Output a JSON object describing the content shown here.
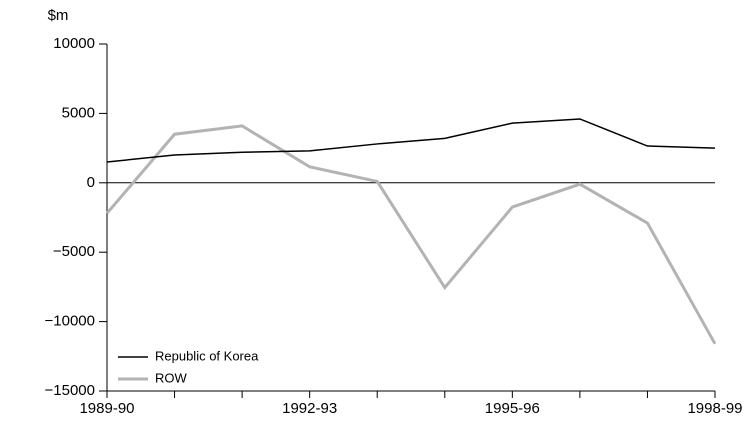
{
  "chart_data": {
    "type": "line",
    "y_label": "$m",
    "categories": [
      "1989-90",
      null,
      null,
      "1992-93",
      null,
      null,
      "1995-96",
      null,
      null,
      "1998-99"
    ],
    "series": [
      {
        "name": "Republic of Korea",
        "color": "#000000",
        "values": [
          1500,
          2000,
          2200,
          2300,
          2800,
          3200,
          4300,
          4600,
          2650,
          2500
        ]
      },
      {
        "name": "ROW",
        "color": "#b3b3b3",
        "values": [
          -2200,
          3500,
          4100,
          1150,
          100,
          -7550,
          -1750,
          -100,
          -2900,
          -11600
        ]
      }
    ],
    "ylim": [
      -15000,
      10000
    ],
    "yticks": [
      {
        "value": -15000,
        "label": "−15000"
      },
      {
        "value": -10000,
        "label": "−10000"
      },
      {
        "value": -5000,
        "label": "−5000"
      },
      0,
      5000,
      10000
    ],
    "legend": "lower left"
  }
}
